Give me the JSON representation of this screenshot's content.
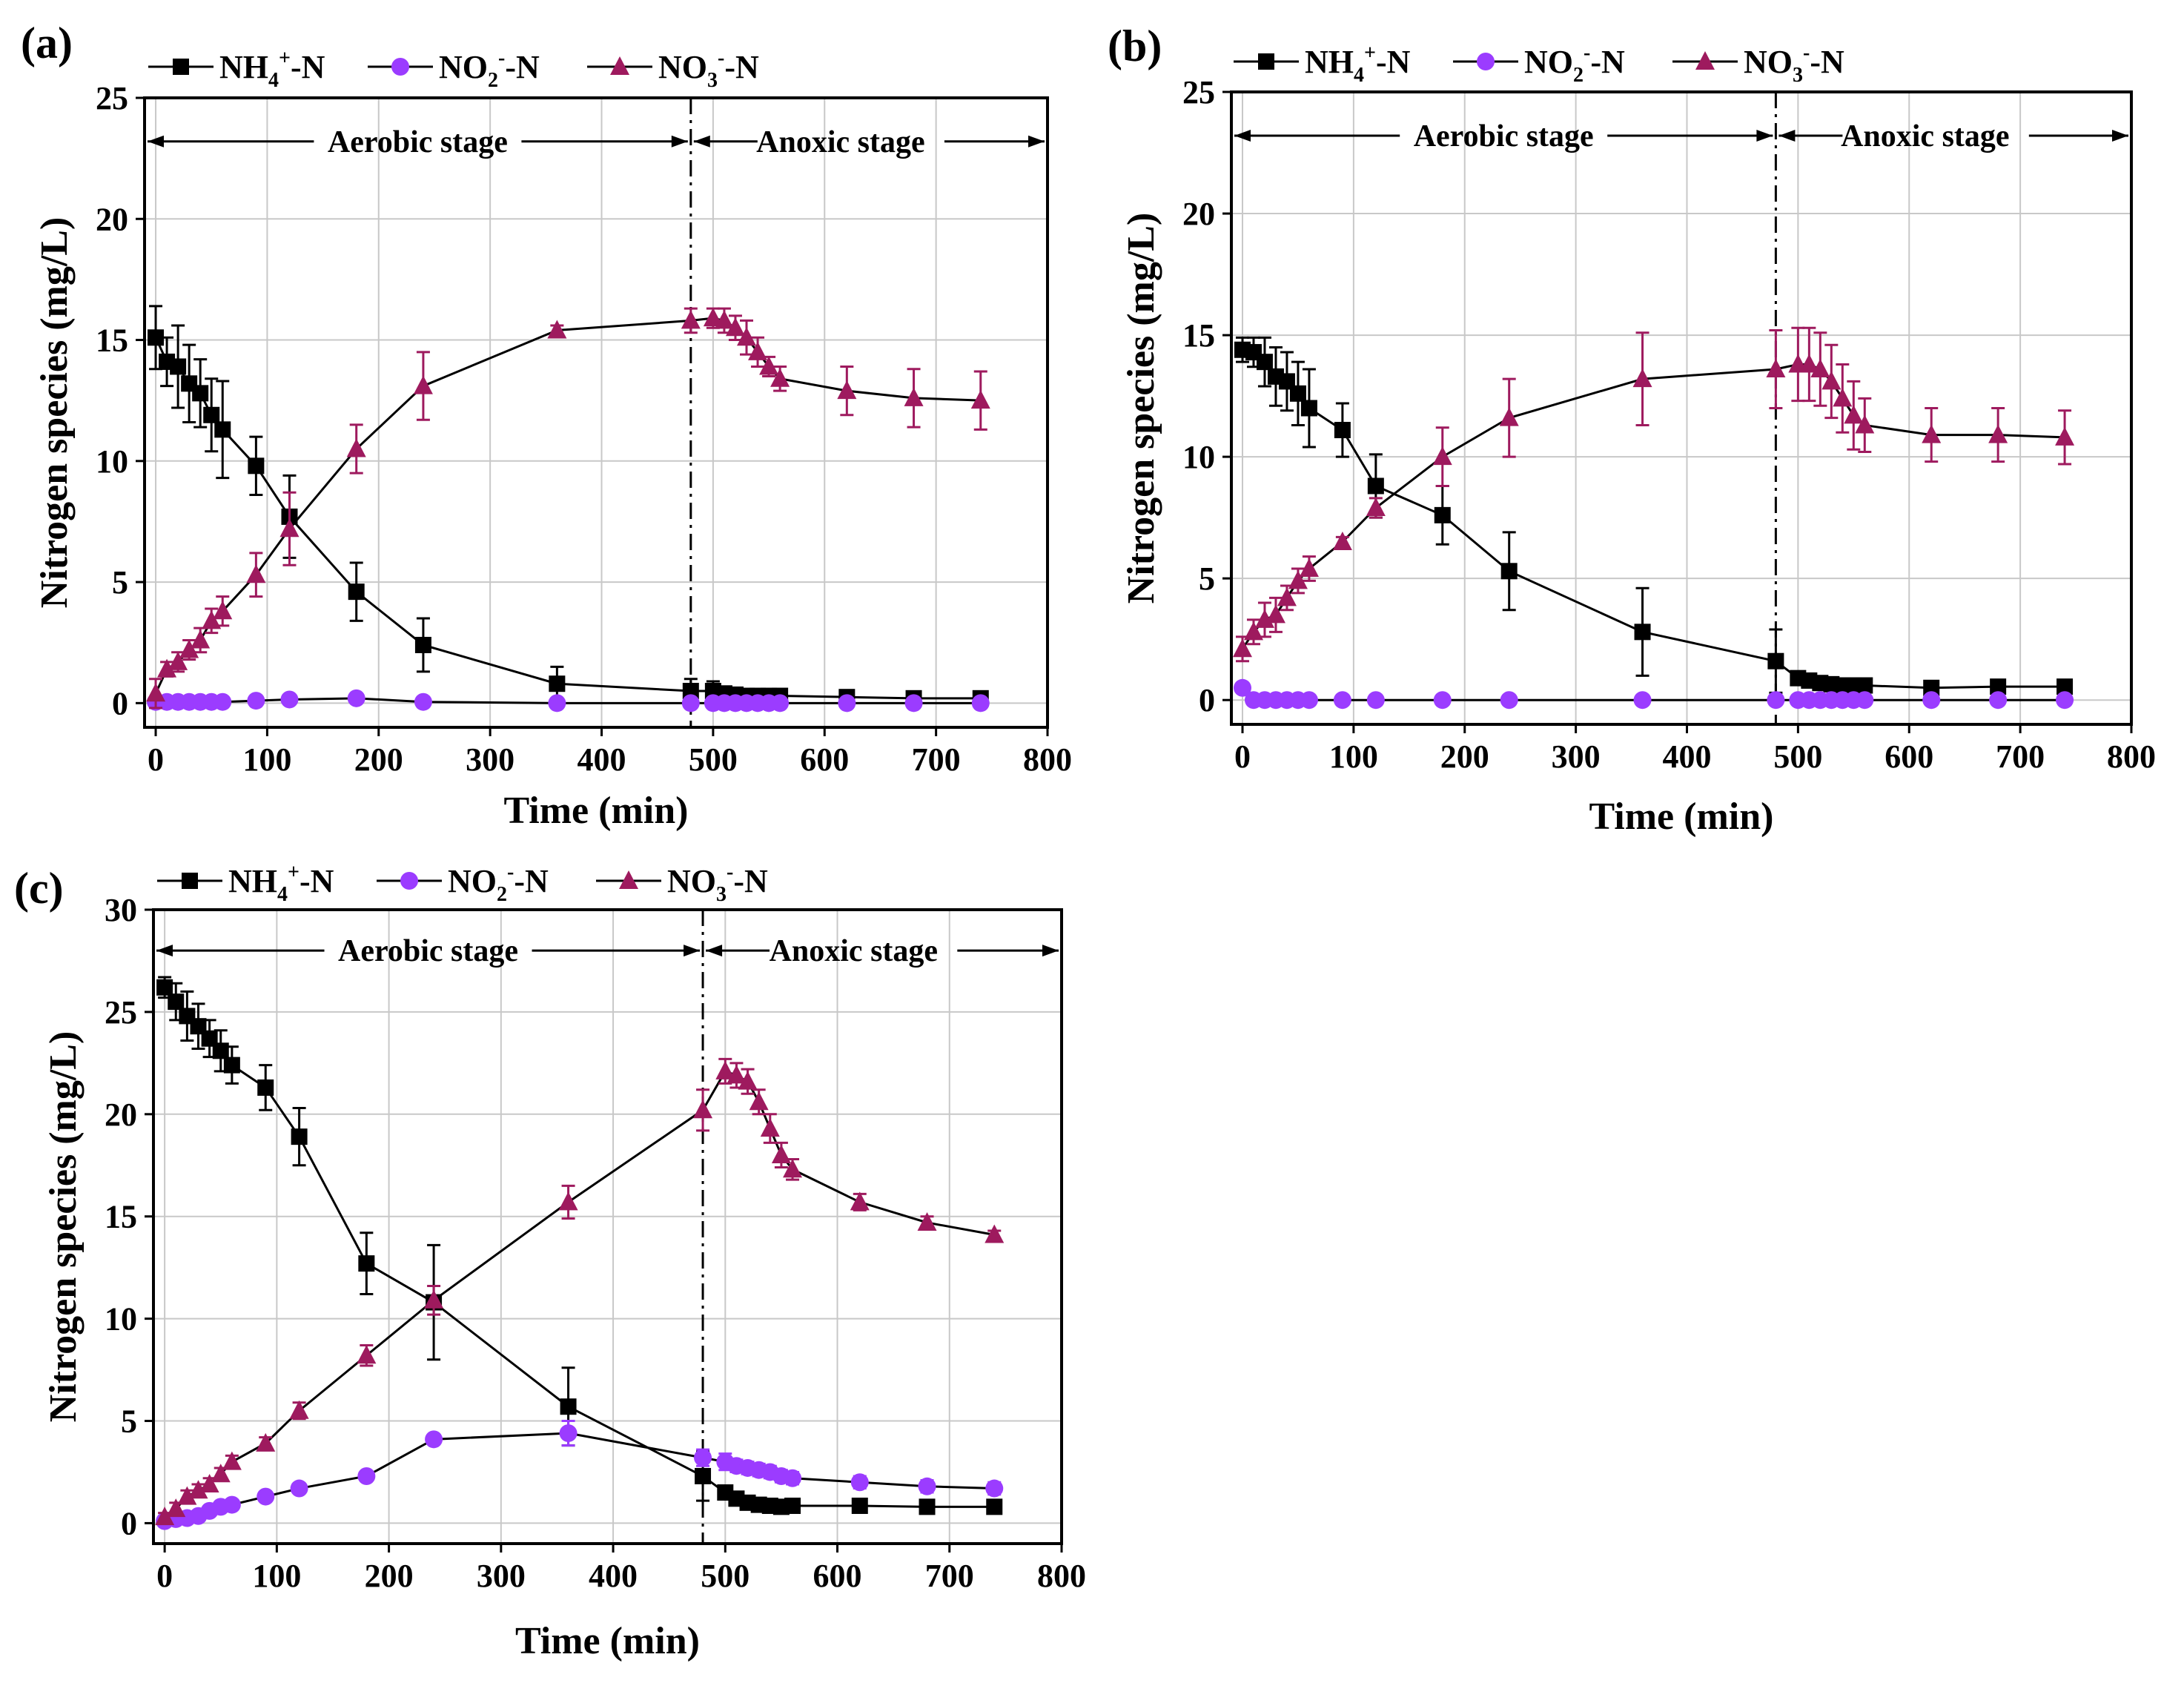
{
  "colors": {
    "nh4": "#000000",
    "no2": "#9b3cff",
    "no3": "#9e1a5e",
    "grid": "#c8c8c8"
  },
  "legend": [
    {
      "key": "nh4",
      "base": "NH",
      "sub": "4",
      "sup": "+",
      "tail": "-N",
      "marker": "square"
    },
    {
      "key": "no2",
      "base": "NO",
      "sub": "2",
      "sup": "-",
      "tail": "-N",
      "marker": "circle"
    },
    {
      "key": "no3",
      "base": "NO",
      "sub": "3",
      "sup": "-",
      "tail": "-N",
      "marker": "triangle"
    }
  ],
  "chart_data": [
    {
      "type": "line",
      "panel_label": "(a)",
      "xlabel": "Time (min)",
      "ylabel": "Nitrogen species (mg/L)",
      "xlim": [
        -10,
        800
      ],
      "ylim": [
        -1,
        25
      ],
      "xticks": [
        0,
        100,
        200,
        300,
        400,
        500,
        600,
        700,
        800
      ],
      "yticks": [
        0,
        5,
        10,
        15,
        20,
        25
      ],
      "stage_boundary": 480,
      "stage_labels": [
        "Aerobic stage",
        "Anoxic stage"
      ],
      "stage_y": 23.2,
      "x": [
        0,
        10,
        20,
        30,
        40,
        50,
        60,
        90,
        120,
        180,
        240,
        360,
        480,
        500,
        510,
        520,
        530,
        540,
        550,
        560,
        620,
        680,
        740
      ],
      "series": [
        {
          "name": "NH4+-N",
          "key": "nh4",
          "values": [
            15.1,
            14.1,
            13.9,
            13.2,
            12.8,
            11.9,
            11.3,
            9.8,
            7.7,
            4.6,
            2.4,
            0.8,
            0.5,
            0.5,
            0.4,
            0.35,
            0.3,
            0.3,
            0.3,
            0.3,
            0.25,
            0.2,
            0.2
          ],
          "errors": [
            1.3,
            1.0,
            1.7,
            1.6,
            1.4,
            1.5,
            2.0,
            1.2,
            1.7,
            1.2,
            1.1,
            0.7,
            0.5,
            0.4,
            0.2,
            0.2,
            0.2,
            0.2,
            0.2,
            0.2,
            0.2,
            0.2,
            0.2
          ]
        },
        {
          "name": "NO2--N",
          "key": "no2",
          "values": [
            0.05,
            0.05,
            0.05,
            0.05,
            0.05,
            0.05,
            0.05,
            0.1,
            0.15,
            0.2,
            0.05,
            0.0,
            0.0,
            0.0,
            0.0,
            0.0,
            0.0,
            0.0,
            0.0,
            0.0,
            0.0,
            0.0,
            0.0
          ],
          "errors": [
            0,
            0,
            0,
            0,
            0,
            0,
            0,
            0,
            0,
            0,
            0,
            0,
            0,
            0,
            0,
            0,
            0,
            0,
            0,
            0,
            0,
            0,
            0
          ]
        },
        {
          "name": "NO3--N",
          "key": "no3",
          "values": [
            0.4,
            1.4,
            1.7,
            2.2,
            2.6,
            3.4,
            3.8,
            5.3,
            7.2,
            10.5,
            13.1,
            15.4,
            15.8,
            15.9,
            15.8,
            15.5,
            15.1,
            14.5,
            13.9,
            13.4,
            12.9,
            12.6,
            12.5
          ],
          "errors": [
            0.6,
            0.3,
            0.4,
            0.4,
            0.5,
            0.5,
            0.6,
            0.9,
            1.5,
            1.0,
            1.4,
            0.2,
            0.5,
            0.4,
            0.5,
            0.5,
            0.7,
            0.6,
            0.4,
            0.5,
            1.0,
            1.2,
            1.2
          ]
        }
      ]
    },
    {
      "type": "line",
      "panel_label": "(b)",
      "xlabel": "Time (min)",
      "ylabel": "Nitrogen species (mg/L)",
      "xlim": [
        -10,
        800
      ],
      "ylim": [
        -1,
        25
      ],
      "xticks": [
        0,
        100,
        200,
        300,
        400,
        500,
        600,
        700,
        800
      ],
      "yticks": [
        0,
        5,
        10,
        15,
        20,
        25
      ],
      "stage_boundary": 480,
      "stage_labels": [
        "Aerobic stage",
        "Anoxic stage"
      ],
      "stage_y": 23.2,
      "x": [
        0,
        10,
        20,
        30,
        40,
        50,
        60,
        90,
        120,
        180,
        240,
        360,
        480,
        500,
        510,
        520,
        530,
        540,
        550,
        560,
        620,
        680,
        740
      ],
      "series": [
        {
          "name": "NH4+-N",
          "key": "nh4",
          "values": [
            14.4,
            14.3,
            13.9,
            13.3,
            13.1,
            12.6,
            12.0,
            11.1,
            8.8,
            7.6,
            5.3,
            2.8,
            1.6,
            0.9,
            0.8,
            0.7,
            0.65,
            0.6,
            0.6,
            0.6,
            0.5,
            0.55,
            0.55
          ],
          "errors": [
            0.5,
            0.6,
            1.0,
            1.2,
            1.2,
            1.3,
            1.6,
            1.1,
            1.3,
            1.2,
            1.6,
            1.8,
            1.3,
            0.2,
            0.1,
            0.1,
            0.1,
            0.1,
            0.1,
            0.1,
            0.1,
            0.1,
            0.1
          ]
        },
        {
          "name": "NO2--N",
          "key": "no2",
          "values": [
            0.5,
            0,
            0,
            0,
            0,
            0,
            0,
            0,
            0,
            0,
            0,
            0,
            0,
            0,
            0,
            0,
            0,
            0,
            0,
            0,
            0,
            0,
            0
          ],
          "errors": [
            0,
            0,
            0,
            0,
            0,
            0,
            0,
            0,
            0,
            0,
            0,
            0,
            0,
            0,
            0,
            0,
            0,
            0,
            0,
            0,
            0,
            0,
            0
          ]
        },
        {
          "name": "NO3--N",
          "key": "no3",
          "values": [
            2.1,
            2.8,
            3.3,
            3.5,
            4.2,
            4.9,
            5.4,
            6.5,
            7.9,
            10.0,
            11.6,
            13.2,
            13.6,
            13.8,
            13.8,
            13.6,
            13.1,
            12.4,
            11.7,
            11.3,
            10.9,
            10.9,
            10.8
          ],
          "errors": [
            0.5,
            0.5,
            0.7,
            0.7,
            0.5,
            0.5,
            0.5,
            0.2,
            0.4,
            1.2,
            1.6,
            1.9,
            1.6,
            1.5,
            1.5,
            1.5,
            1.5,
            1.4,
            1.4,
            1.1,
            1.1,
            1.1,
            1.1
          ]
        }
      ]
    },
    {
      "type": "line",
      "panel_label": "(c)",
      "xlabel": "Time (min)",
      "ylabel": "Nitrogen species (mg/L)",
      "xlim": [
        -10,
        800
      ],
      "ylim": [
        -1,
        30
      ],
      "xticks": [
        0,
        100,
        200,
        300,
        400,
        500,
        600,
        700,
        800
      ],
      "yticks": [
        0,
        5,
        10,
        15,
        20,
        25,
        30
      ],
      "stage_boundary": 480,
      "stage_labels": [
        "Aerobic stage",
        "Anoxic stage"
      ],
      "stage_y": 28,
      "x": [
        0,
        10,
        20,
        30,
        40,
        50,
        60,
        90,
        120,
        180,
        240,
        360,
        480,
        500,
        510,
        520,
        530,
        540,
        550,
        560,
        620,
        680,
        740
      ],
      "series": [
        {
          "name": "NH4+-N",
          "key": "nh4",
          "values": [
            26.2,
            25.5,
            24.8,
            24.3,
            23.7,
            23.1,
            22.4,
            21.3,
            18.9,
            12.7,
            10.8,
            5.7,
            2.3,
            1.5,
            1.2,
            1.0,
            0.9,
            0.85,
            0.8,
            0.85,
            0.85,
            0.8,
            0.8
          ],
          "errors": [
            0.5,
            0.9,
            1.2,
            1.1,
            0.9,
            1.0,
            0.9,
            1.1,
            1.4,
            1.5,
            2.8,
            1.9,
            1.2,
            0.2,
            0.2,
            0.2,
            0.2,
            0.2,
            0.2,
            0.2,
            0.2,
            0.2,
            0.2
          ]
        },
        {
          "name": "NO2--N",
          "key": "no2",
          "values": [
            0.1,
            0.2,
            0.25,
            0.35,
            0.6,
            0.8,
            0.9,
            1.3,
            1.7,
            2.3,
            4.1,
            4.4,
            3.2,
            3.0,
            2.8,
            2.7,
            2.6,
            2.5,
            2.3,
            2.2,
            2.0,
            1.8,
            1.7
          ],
          "errors": [
            0.1,
            0.1,
            0.1,
            0.1,
            0.1,
            0.1,
            0.1,
            0.2,
            0.2,
            0.2,
            0.2,
            0.6,
            0.4,
            0.4,
            0.3,
            0.3,
            0.3,
            0.3,
            0.3,
            0.3,
            0.3,
            0.3,
            0.3
          ]
        },
        {
          "name": "NO3--N",
          "key": "no3",
          "values": [
            0.3,
            0.7,
            1.3,
            1.6,
            1.9,
            2.4,
            3.0,
            3.9,
            5.5,
            8.2,
            10.9,
            15.7,
            20.2,
            22.1,
            21.9,
            21.6,
            20.6,
            19.3,
            18.0,
            17.3,
            15.7,
            14.7,
            14.1
          ],
          "errors": [
            0.2,
            0.3,
            0.3,
            0.3,
            0.3,
            0.3,
            0.3,
            0.3,
            0.4,
            0.5,
            0.7,
            0.8,
            1.0,
            0.6,
            0.6,
            0.6,
            0.6,
            0.7,
            0.6,
            0.5,
            0.4,
            0.3,
            0.2
          ]
        }
      ]
    }
  ]
}
